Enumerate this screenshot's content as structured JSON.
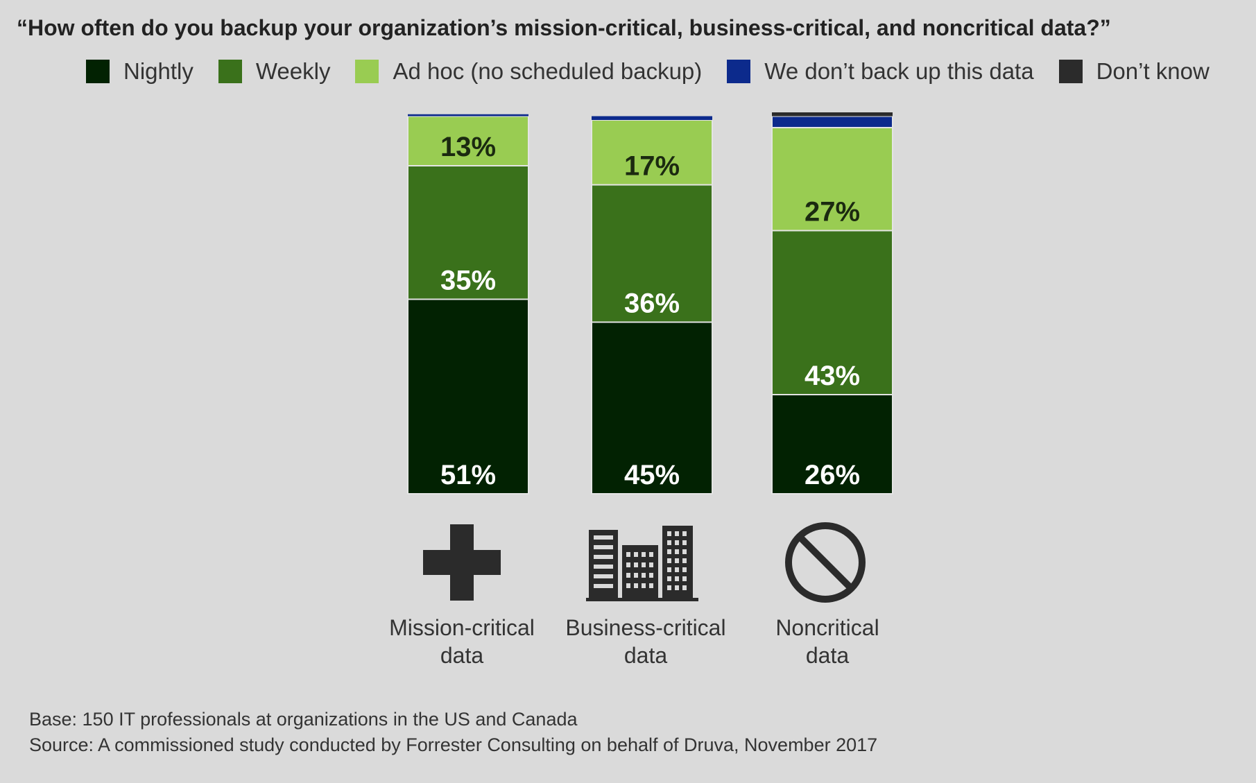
{
  "chart_data": {
    "type": "bar",
    "stacked": true,
    "title": "“How often do you backup your organization’s mission-critical, business-critical, and noncritical data?”",
    "categories": [
      "Mission-critical data",
      "Business-critical data",
      "Noncritical data"
    ],
    "category_lines": [
      [
        "Mission-critical",
        "data"
      ],
      [
        "Business-critical",
        "data"
      ],
      [
        "Noncritical",
        "data"
      ]
    ],
    "category_icons": [
      "plus-icon",
      "building-icon",
      "prohibited-icon"
    ],
    "series": [
      {
        "name": "Nightly",
        "color": "#022202",
        "values": [
          51,
          45,
          26
        ],
        "labels": [
          "51%",
          "45%",
          "26%"
        ],
        "label_color": "#ffffff"
      },
      {
        "name": "Weekly",
        "color": "#3a711b",
        "values": [
          35,
          36,
          43
        ],
        "labels": [
          "35%",
          "36%",
          "43%"
        ],
        "label_color": "#ffffff"
      },
      {
        "name": "Ad hoc (no scheduled backup)",
        "color": "#99cc52",
        "values": [
          13,
          17,
          27
        ],
        "labels": [
          "13%",
          "17%",
          "27%"
        ],
        "label_color": "#1b2a10"
      },
      {
        "name": "We don’t back up this data",
        "color": "#0c2a8c",
        "values": [
          0.5,
          1,
          3
        ],
        "labels": [
          "",
          "",
          ""
        ],
        "label_color": "#ffffff"
      },
      {
        "name": "Don’t know",
        "color": "#2b2b2b",
        "values": [
          0,
          0,
          1
        ],
        "labels": [
          "",
          "",
          ""
        ],
        "label_color": "#ffffff"
      }
    ],
    "ylim": [
      0,
      100
    ],
    "grid": false,
    "legend_position": "top"
  },
  "footer": {
    "base": "Base: 150 IT professionals at organizations in the US and Canada",
    "source": "Source: A commissioned study conducted by Forrester Consulting on behalf of Druva, November 2017"
  }
}
